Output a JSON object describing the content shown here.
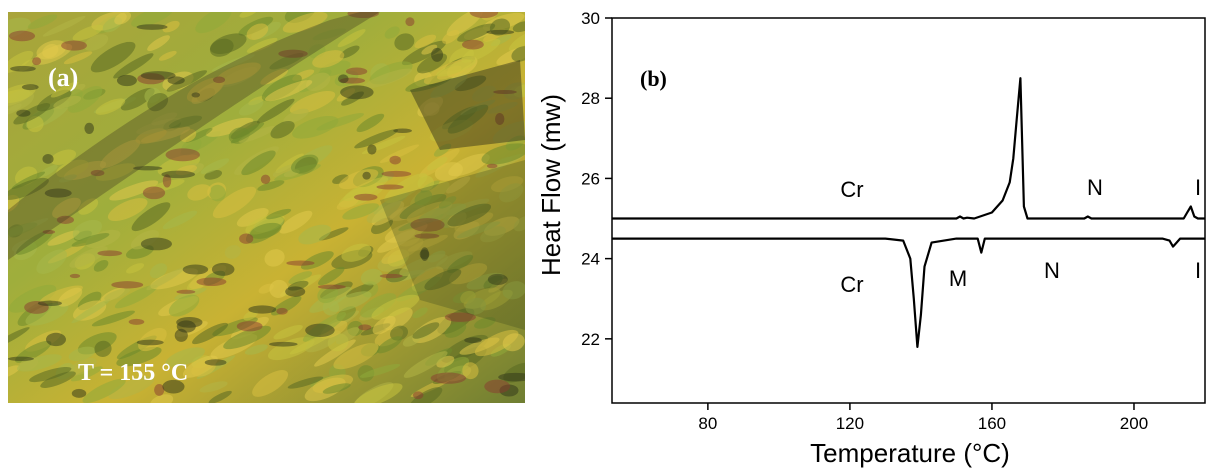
{
  "panel_a": {
    "label": "(a)",
    "annotation": "T = 155 °C"
  },
  "chart_data": {
    "type": "line",
    "xlabel": "Temperature (°C)",
    "ylabel": "Heat Flow (mw)",
    "annotations": [
      "(b)",
      "Cr",
      "N",
      "I",
      "Cr",
      "M",
      "N",
      "I"
    ],
    "xlim": [
      53,
      220
    ],
    "ylim": [
      20.4,
      30
    ],
    "xticks": [
      80,
      120,
      160,
      200
    ],
    "yticks": [
      22,
      24,
      26,
      28,
      30
    ],
    "series": [
      {
        "color": "#000000",
        "x": [
          53,
          100,
          140,
          150,
          151,
          152,
          153,
          155,
          160,
          163,
          165,
          166,
          167,
          168,
          169,
          170,
          186,
          187,
          188,
          189,
          214,
          215,
          216,
          217,
          218,
          220
        ],
        "values": [
          25.0,
          25.0,
          25.0,
          25.0,
          25.05,
          25.0,
          25.02,
          25.0,
          25.15,
          25.45,
          25.9,
          26.5,
          27.5,
          28.5,
          25.3,
          25.0,
          25.0,
          25.05,
          25.0,
          25.0,
          25.0,
          25.15,
          25.3,
          25.05,
          25.0,
          25.0
        ]
      },
      {
        "color": "#000000",
        "x": [
          53,
          130,
          135,
          137,
          138,
          139,
          140,
          141,
          143,
          150,
          156,
          157,
          158,
          170,
          208,
          210,
          211,
          212,
          213,
          220
        ],
        "values": [
          24.5,
          24.5,
          24.45,
          24.0,
          23.0,
          21.8,
          22.6,
          23.8,
          24.4,
          24.5,
          24.5,
          24.15,
          24.5,
          24.5,
          24.5,
          24.45,
          24.3,
          24.4,
          24.5,
          24.5
        ]
      }
    ]
  }
}
